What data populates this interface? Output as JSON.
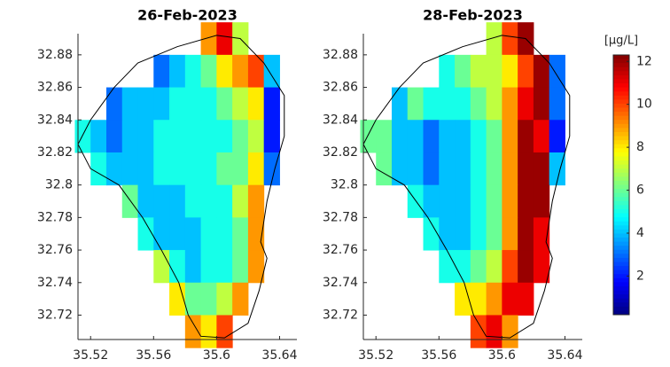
{
  "chart_data": [
    {
      "type": "heatmap",
      "title": "26-Feb-2023",
      "x": [
        35.515,
        35.525,
        35.535,
        35.545,
        35.555,
        35.565,
        35.575,
        35.585,
        35.595,
        35.605,
        35.615,
        35.625,
        35.635,
        35.645
      ],
      "y": [
        32.89,
        32.87,
        32.85,
        32.83,
        32.81,
        32.79,
        32.77,
        32.75,
        32.73,
        32.71
      ],
      "values": [
        [
          null,
          null,
          null,
          null,
          null,
          null,
          null,
          null,
          9,
          11,
          7,
          null,
          null,
          null
        ],
        [
          null,
          null,
          null,
          null,
          null,
          3,
          4,
          5,
          6,
          8,
          9,
          10,
          4,
          null
        ],
        [
          null,
          null,
          3,
          4,
          4,
          4,
          5,
          5,
          5,
          6,
          7,
          8,
          2,
          null
        ],
        [
          5,
          4,
          3,
          4,
          4,
          5,
          5,
          5,
          5,
          5,
          6,
          7,
          2,
          null
        ],
        [
          null,
          5,
          4,
          4,
          4,
          5,
          5,
          5,
          5,
          6,
          6,
          8,
          3,
          null
        ],
        [
          null,
          null,
          null,
          6,
          4,
          4,
          4,
          5,
          5,
          5,
          7,
          9,
          null,
          null
        ],
        [
          null,
          null,
          null,
          null,
          5,
          4,
          4,
          4,
          5,
          5,
          6,
          9,
          null,
          null
        ],
        [
          null,
          null,
          null,
          null,
          null,
          7,
          5,
          4,
          5,
          5,
          6,
          9,
          null,
          null
        ],
        [
          null,
          null,
          null,
          null,
          null,
          null,
          8,
          6,
          6,
          7,
          9,
          null,
          null,
          null
        ],
        [
          null,
          null,
          null,
          null,
          null,
          null,
          null,
          9,
          8,
          10,
          null,
          null,
          null,
          null
        ]
      ],
      "xlim": [
        35.512,
        35.651
      ],
      "ylim": [
        32.705,
        32.893
      ],
      "xticks": [
        35.52,
        35.56,
        35.6,
        35.64
      ],
      "yticks": [
        32.72,
        32.74,
        32.76,
        32.78,
        32.8,
        32.82,
        32.84,
        32.86,
        32.88
      ],
      "outline_lon": [
        35.6,
        35.615,
        35.63,
        35.643,
        35.643,
        35.637,
        35.632,
        35.628,
        35.632,
        35.627,
        35.62,
        35.605,
        35.59,
        35.582,
        35.576,
        35.565,
        35.553,
        35.538,
        35.52,
        35.512,
        35.52,
        35.535,
        35.55,
        35.575
      ],
      "outline_lat": [
        32.892,
        32.89,
        32.875,
        32.855,
        32.83,
        32.81,
        32.79,
        32.765,
        32.755,
        32.735,
        32.715,
        32.706,
        32.707,
        32.72,
        32.74,
        32.76,
        32.78,
        32.8,
        32.81,
        32.825,
        32.84,
        32.86,
        32.875,
        32.885
      ],
      "colormap": "jet",
      "clim": [
        0.2,
        12.3
      ]
    },
    {
      "type": "heatmap",
      "title": "28-Feb-2023",
      "x": [
        35.515,
        35.525,
        35.535,
        35.545,
        35.555,
        35.565,
        35.575,
        35.585,
        35.595,
        35.605,
        35.615,
        35.625,
        35.635,
        35.645
      ],
      "y": [
        32.89,
        32.87,
        32.85,
        32.83,
        32.81,
        32.79,
        32.77,
        32.75,
        32.73,
        32.71
      ],
      "values": [
        [
          null,
          null,
          null,
          null,
          null,
          null,
          null,
          null,
          7,
          10,
          12,
          null,
          null,
          null
        ],
        [
          null,
          null,
          null,
          null,
          null,
          5,
          6,
          7,
          7,
          8,
          10,
          12,
          3,
          null
        ],
        [
          null,
          null,
          4,
          6,
          5,
          5,
          5,
          6,
          7,
          9,
          11,
          12,
          3,
          null
        ],
        [
          6,
          6,
          4,
          4,
          3,
          4,
          4,
          5,
          6,
          9,
          12,
          11,
          2,
          null
        ],
        [
          null,
          6,
          4,
          4,
          3,
          4,
          4,
          5,
          6,
          9,
          12,
          12,
          4,
          null
        ],
        [
          null,
          null,
          null,
          5,
          4,
          4,
          4,
          5,
          6,
          9,
          12,
          12,
          null,
          null
        ],
        [
          null,
          null,
          null,
          null,
          5,
          4,
          4,
          5,
          6,
          9,
          12,
          11,
          null,
          null
        ],
        [
          null,
          null,
          null,
          null,
          null,
          5,
          5,
          6,
          7,
          10,
          12,
          11,
          null,
          null
        ],
        [
          null,
          null,
          null,
          null,
          null,
          null,
          8,
          8,
          9,
          11,
          11,
          null,
          null,
          null
        ],
        [
          null,
          null,
          null,
          null,
          null,
          null,
          null,
          10,
          11,
          9,
          null,
          null,
          null,
          null
        ]
      ],
      "xlim": [
        35.512,
        35.651
      ],
      "ylim": [
        32.705,
        32.893
      ],
      "xticks": [
        35.52,
        35.56,
        35.6,
        35.64
      ],
      "yticks": [
        32.72,
        32.74,
        32.76,
        32.78,
        32.8,
        32.82,
        32.84,
        32.86,
        32.88
      ],
      "outline_lon": [
        35.6,
        35.615,
        35.63,
        35.643,
        35.643,
        35.637,
        35.632,
        35.628,
        35.632,
        35.627,
        35.62,
        35.605,
        35.59,
        35.582,
        35.576,
        35.565,
        35.553,
        35.538,
        35.52,
        35.512,
        35.52,
        35.535,
        35.55,
        35.575
      ],
      "outline_lat": [
        32.892,
        32.89,
        32.875,
        32.855,
        32.83,
        32.81,
        32.79,
        32.765,
        32.755,
        32.735,
        32.715,
        32.706,
        32.707,
        32.72,
        32.74,
        32.76,
        32.78,
        32.8,
        32.81,
        32.825,
        32.84,
        32.86,
        32.875,
        32.885
      ],
      "colormap": "jet",
      "clim": [
        0.2,
        12.3
      ],
      "colorbar_label": "[μg/L]",
      "colorbar_ticks": [
        2,
        4,
        6,
        8,
        10,
        12
      ]
    }
  ]
}
